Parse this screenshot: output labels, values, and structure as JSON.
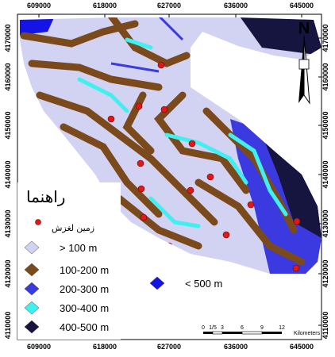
{
  "map": {
    "x_ticks": [
      609000,
      618000,
      627000,
      636000,
      645000
    ],
    "y_ticks": [
      4170000,
      4160000,
      4150000,
      4140000,
      4130000,
      4120000,
      4110000
    ],
    "north": "N",
    "legend": {
      "title": "راهنما",
      "landslide": "زمین لغزش",
      "items": [
        {
          "label": "> 100 m",
          "color": "#d2d2f2"
        },
        {
          "label": "100-200 m",
          "color": "#7b4a1c"
        },
        {
          "label": "200-300 m",
          "color": "#3a3ae0"
        },
        {
          "label": "300-400 m",
          "color": "#3ff0f0"
        },
        {
          "label": "400-500 m",
          "color": "#151540"
        },
        {
          "label": "< 500 m",
          "color": "#1414e6"
        }
      ]
    },
    "scale_bar": {
      "labels": [
        "0",
        "1/5",
        "3",
        "6",
        "9",
        "12"
      ],
      "unit": "Kilometers"
    }
  }
}
